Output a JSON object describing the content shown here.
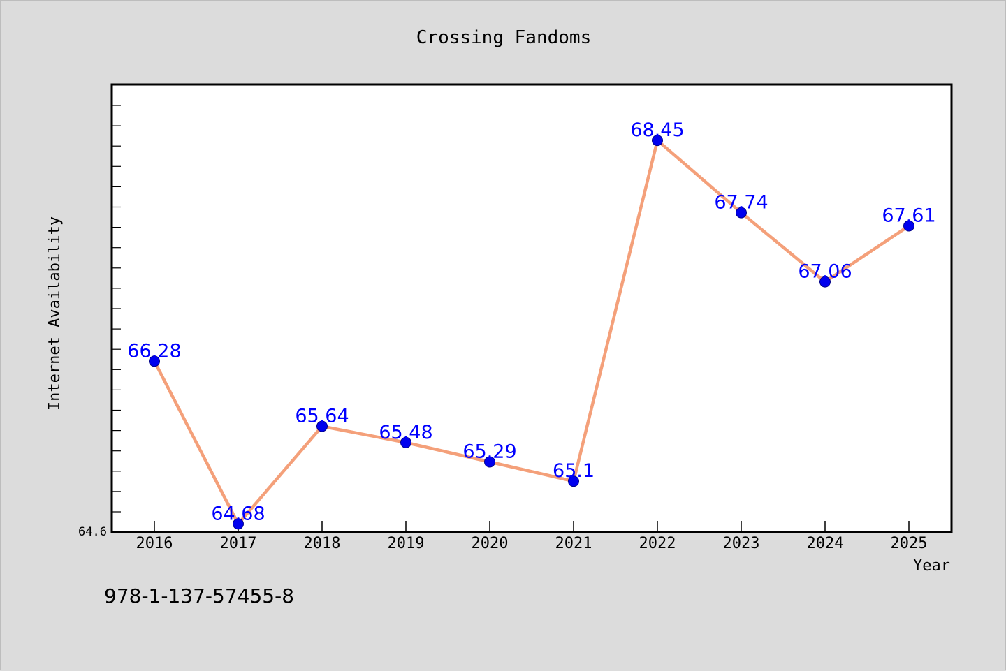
{
  "chart_data": {
    "type": "line",
    "title": "Crossing Fandoms",
    "xlabel": "Year",
    "ylabel": "Internet Availability",
    "categories": [
      "2016",
      "2017",
      "2018",
      "2019",
      "2020",
      "2021",
      "2022",
      "2023",
      "2024",
      "2025"
    ],
    "series": [
      {
        "values": [
          66.28,
          64.68,
          65.64,
          65.48,
          65.29,
          65.1,
          68.45,
          67.74,
          67.06,
          67.61
        ],
        "labels": [
          "66.28",
          "64.68",
          "65.64",
          "65.48",
          "65.29",
          "65.1",
          "68.45",
          "67.74",
          "67.06",
          "67.61"
        ],
        "line_color": "#f4a07a",
        "marker_color": "#0000ee",
        "label_color": "#0000ff"
      }
    ],
    "ylim": [
      64.6,
      69.0
    ],
    "y_tick_labels": [
      "64.6"
    ],
    "grid": false,
    "legend": "none"
  },
  "footer": {
    "isbn": "978-1-137-57455-8"
  },
  "colors": {
    "background": "#dcdcdc",
    "plot_background": "#ffffff",
    "axis": "#000000"
  }
}
